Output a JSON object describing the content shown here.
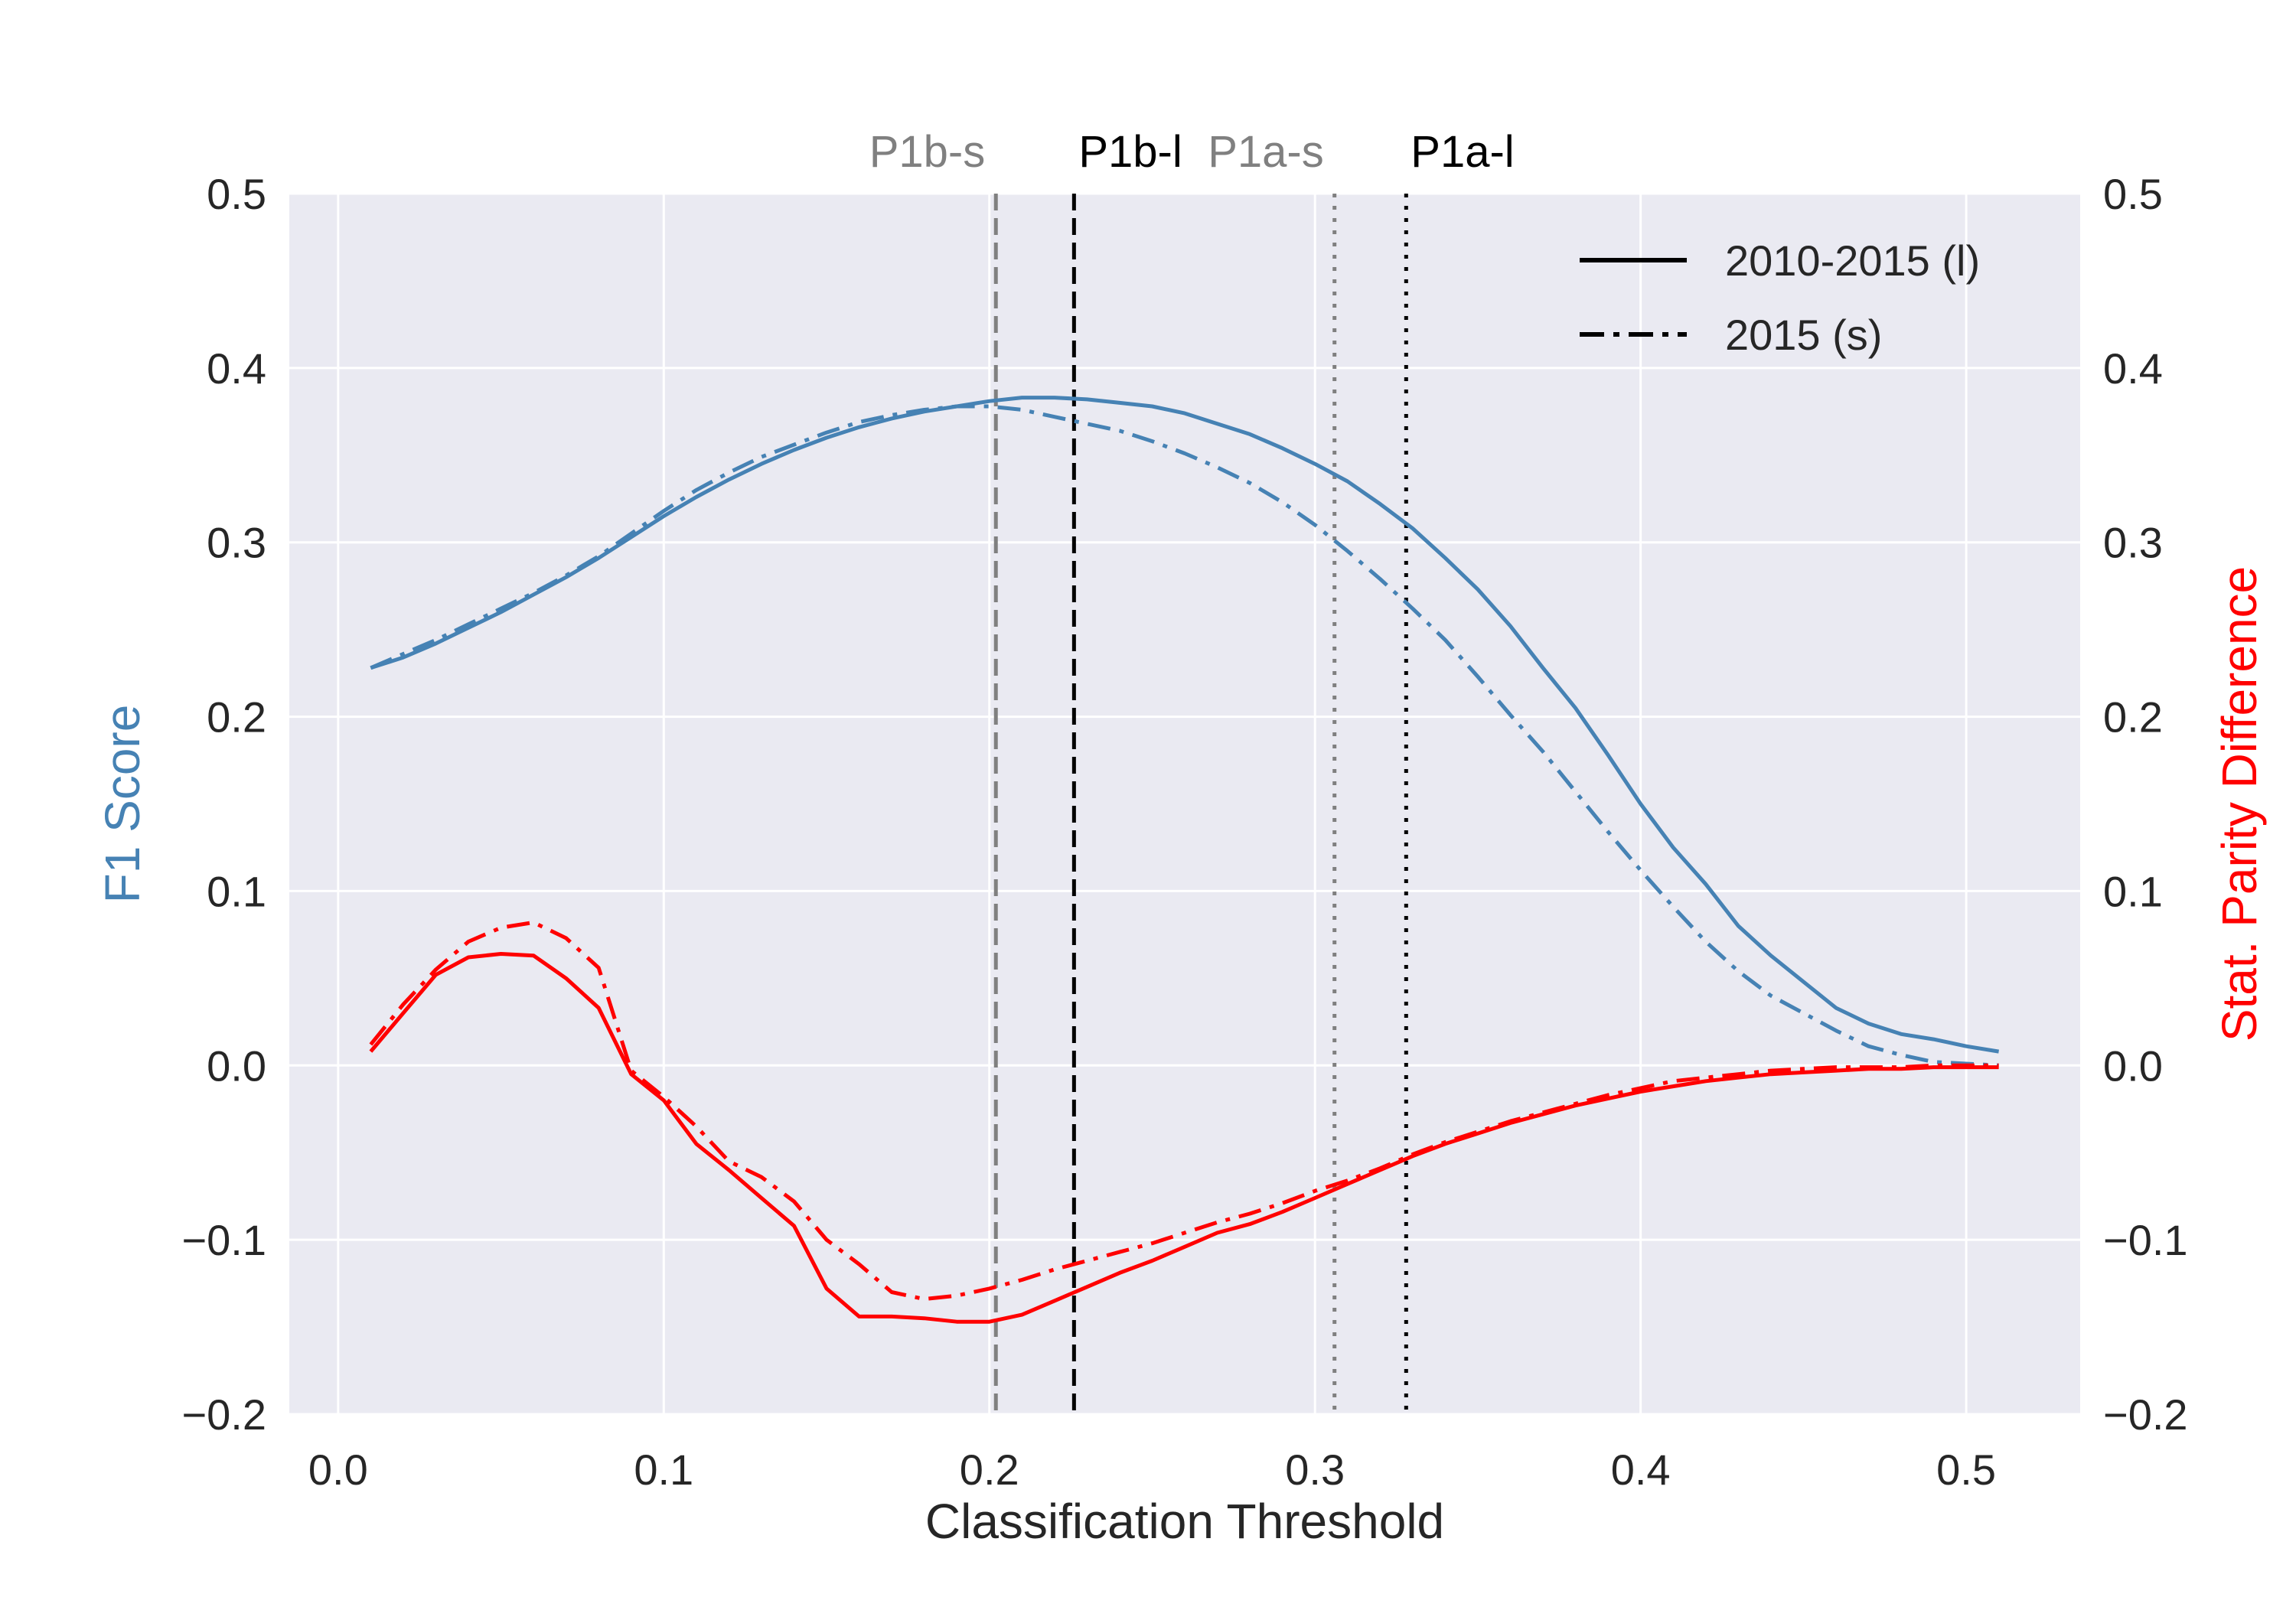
{
  "chart_data": {
    "type": "line",
    "xlabel": "Classification Threshold",
    "ylabel_left": "F1 Score",
    "ylabel_right": "Stat. Parity Difference",
    "xlim": [
      -0.015,
      0.535
    ],
    "ylim_left": [
      -0.2,
      0.5
    ],
    "ylim_right": [
      -0.2,
      0.5
    ],
    "xticks": [
      "0.0",
      "0.1",
      "0.2",
      "0.3",
      "0.4",
      "0.5"
    ],
    "yticks": [
      "−0.2",
      "−0.1",
      "0.0",
      "0.1",
      "0.2",
      "0.3",
      "0.4",
      "0.5"
    ],
    "grid": true,
    "legend_position": "top-right",
    "legend": [
      {
        "label": "2010-2015 (l)",
        "style": "solid"
      },
      {
        "label": "2015 (s)",
        "style": "dashdot"
      }
    ],
    "colors": {
      "f1": "#4682b4",
      "spd": "#ff0000",
      "background": "#eaeaf2",
      "grid": "#ffffff"
    },
    "vlines": [
      {
        "label": "P1b-s",
        "x": 0.202,
        "style": "dashed",
        "color": "#808080"
      },
      {
        "label": "P1b-l",
        "x": 0.226,
        "style": "dashed",
        "color": "#000000"
      },
      {
        "label": "P1a-s",
        "x": 0.306,
        "style": "dotted",
        "color": "#808080"
      },
      {
        "label": "P1a-l",
        "x": 0.328,
        "style": "dotted",
        "color": "#000000"
      }
    ],
    "x": [
      0.01,
      0.02,
      0.03,
      0.04,
      0.05,
      0.06,
      0.07,
      0.08,
      0.09,
      0.1,
      0.11,
      0.12,
      0.13,
      0.14,
      0.15,
      0.16,
      0.17,
      0.18,
      0.19,
      0.2,
      0.21,
      0.22,
      0.23,
      0.24,
      0.25,
      0.26,
      0.27,
      0.28,
      0.29,
      0.3,
      0.31,
      0.32,
      0.33,
      0.34,
      0.35,
      0.36,
      0.37,
      0.38,
      0.39,
      0.4,
      0.41,
      0.42,
      0.43,
      0.44,
      0.45,
      0.46,
      0.47,
      0.48,
      0.49,
      0.5,
      0.51
    ],
    "series": [
      {
        "name": "2010-2015 (l)",
        "metric": "F1",
        "axis": "left",
        "style": "solid",
        "values": [
          0.228,
          0.234,
          0.242,
          0.251,
          0.26,
          0.27,
          0.28,
          0.291,
          0.303,
          0.315,
          0.326,
          0.336,
          0.345,
          0.353,
          0.36,
          0.366,
          0.371,
          0.375,
          0.378,
          0.381,
          0.383,
          0.383,
          0.382,
          0.38,
          0.378,
          0.374,
          0.368,
          0.362,
          0.354,
          0.345,
          0.335,
          0.322,
          0.308,
          0.291,
          0.273,
          0.252,
          0.228,
          0.205,
          0.178,
          0.15,
          0.125,
          0.104,
          0.08,
          0.063,
          0.048,
          0.033,
          0.024,
          0.018,
          0.015,
          0.011,
          0.008
        ]
      },
      {
        "name": "2015 (s)",
        "metric": "F1",
        "axis": "left",
        "style": "dashdot",
        "values": [
          0.228,
          0.236,
          0.244,
          0.253,
          0.262,
          0.271,
          0.281,
          0.292,
          0.305,
          0.318,
          0.33,
          0.34,
          0.349,
          0.356,
          0.363,
          0.369,
          0.373,
          0.376,
          0.378,
          0.378,
          0.376,
          0.372,
          0.368,
          0.364,
          0.358,
          0.351,
          0.343,
          0.334,
          0.323,
          0.31,
          0.295,
          0.279,
          0.262,
          0.244,
          0.223,
          0.201,
          0.18,
          0.157,
          0.134,
          0.112,
          0.091,
          0.071,
          0.054,
          0.04,
          0.03,
          0.02,
          0.011,
          0.006,
          0.002,
          0.001,
          0.0
        ]
      },
      {
        "name": "2010-2015 (l)",
        "metric": "SPD",
        "axis": "right",
        "style": "solid",
        "values": [
          0.008,
          0.03,
          0.052,
          0.062,
          0.064,
          0.063,
          0.05,
          0.033,
          -0.005,
          -0.02,
          -0.045,
          -0.06,
          -0.076,
          -0.092,
          -0.128,
          -0.144,
          -0.144,
          -0.145,
          -0.147,
          -0.147,
          -0.143,
          -0.135,
          -0.127,
          -0.119,
          -0.112,
          -0.104,
          -0.096,
          -0.091,
          -0.084,
          -0.076,
          -0.068,
          -0.06,
          -0.052,
          -0.045,
          -0.039,
          -0.033,
          -0.028,
          -0.023,
          -0.019,
          -0.015,
          -0.012,
          -0.009,
          -0.007,
          -0.005,
          -0.004,
          -0.003,
          -0.002,
          -0.002,
          -0.001,
          -0.001,
          -0.001
        ]
      },
      {
        "name": "2015 (s)",
        "metric": "SPD",
        "axis": "right",
        "style": "dashdot",
        "values": [
          0.012,
          0.035,
          0.055,
          0.071,
          0.079,
          0.082,
          0.073,
          0.056,
          -0.003,
          -0.018,
          -0.035,
          -0.055,
          -0.064,
          -0.078,
          -0.1,
          -0.114,
          -0.13,
          -0.134,
          -0.132,
          -0.128,
          -0.123,
          -0.117,
          -0.112,
          -0.107,
          -0.102,
          -0.096,
          -0.09,
          -0.085,
          -0.079,
          -0.072,
          -0.066,
          -0.059,
          -0.051,
          -0.044,
          -0.038,
          -0.032,
          -0.027,
          -0.022,
          -0.017,
          -0.013,
          -0.009,
          -0.007,
          -0.005,
          -0.003,
          -0.002,
          -0.001,
          -0.001,
          -0.001,
          0.0,
          0.0,
          0.0
        ]
      }
    ]
  }
}
